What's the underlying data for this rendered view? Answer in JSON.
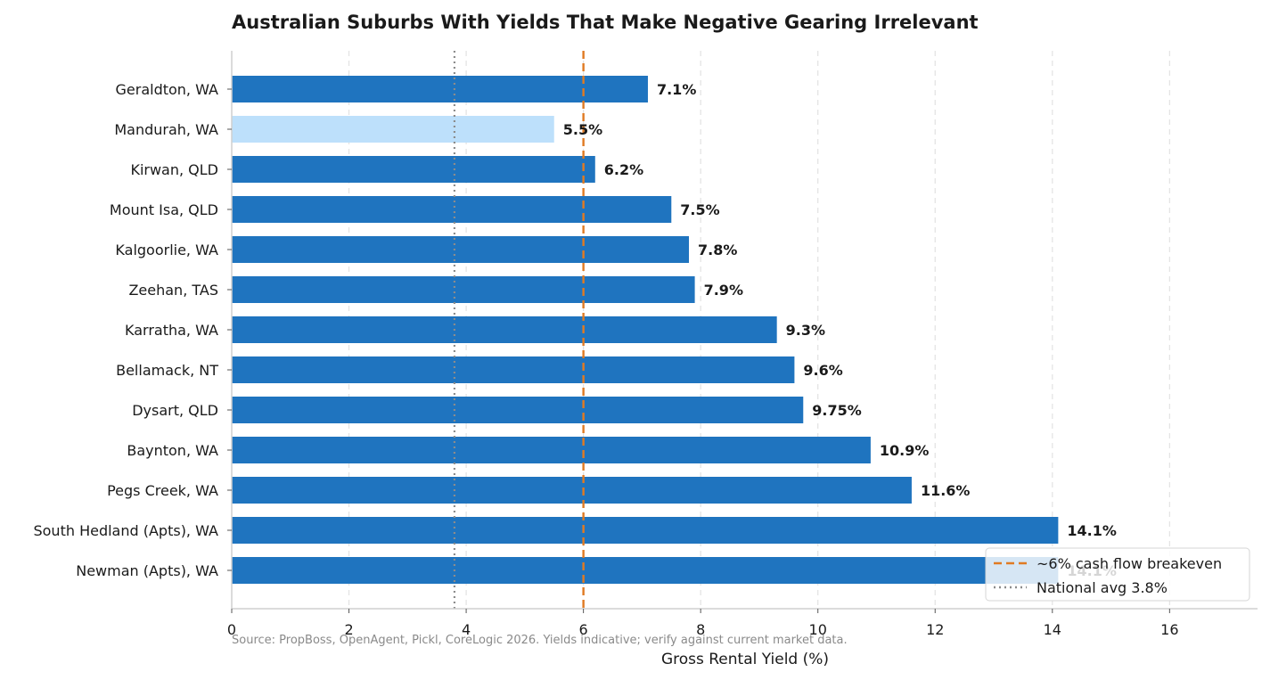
{
  "chart_data": {
    "type": "bar",
    "orientation": "horizontal",
    "title": "Australian Suburbs With Yields That Make Negative Gearing Irrelevant",
    "xlabel": "Gross Rental Yield (%)",
    "ylabel": "",
    "xlim": [
      0,
      17.5
    ],
    "xticks": [
      0,
      2,
      4,
      6,
      8,
      10,
      12,
      14,
      16
    ],
    "grid": "vertical dashed",
    "categories": [
      "Geraldton, WA",
      "Mandurah, WA",
      "Kirwan, QLD",
      "Mount Isa, QLD",
      "Kalgoorlie, WA",
      "Zeehan, TAS",
      "Karratha, WA",
      "Bellamack, NT",
      "Dysart, QLD",
      "Baynton, WA",
      "Pegs Creek, WA",
      "South Hedland (Apts), WA",
      "Newman (Apts), WA"
    ],
    "values": [
      7.1,
      5.5,
      6.2,
      7.5,
      7.8,
      7.9,
      9.3,
      9.6,
      9.75,
      10.9,
      11.6,
      14.1,
      14.1
    ],
    "value_labels": [
      "7.1%",
      "5.5%",
      "6.2%",
      "7.5%",
      "7.8%",
      "7.9%",
      "9.3%",
      "9.6%",
      "9.75%",
      "10.9%",
      "11.6%",
      "14.1%",
      "14.1%"
    ],
    "bar_colors": [
      "#1f74bf",
      "#bde0fb",
      "#1f74bf",
      "#1f74bf",
      "#1f74bf",
      "#1f74bf",
      "#1f74bf",
      "#1f74bf",
      "#1f74bf",
      "#1f74bf",
      "#1f74bf",
      "#1f74bf",
      "#1f74bf"
    ],
    "reference_lines": [
      {
        "label": "~6% cash flow breakeven",
        "value": 6,
        "color": "#e07a22",
        "style": "dashed"
      },
      {
        "label": "National avg 3.8%",
        "value": 3.8,
        "color": "#8c8c8c",
        "style": "dotted"
      }
    ],
    "legend_position": "bottom-right",
    "source_note": "Source: PropBoss, OpenAgent, Pickl, CoreLogic 2026. Yields indicative; verify against current market data."
  }
}
